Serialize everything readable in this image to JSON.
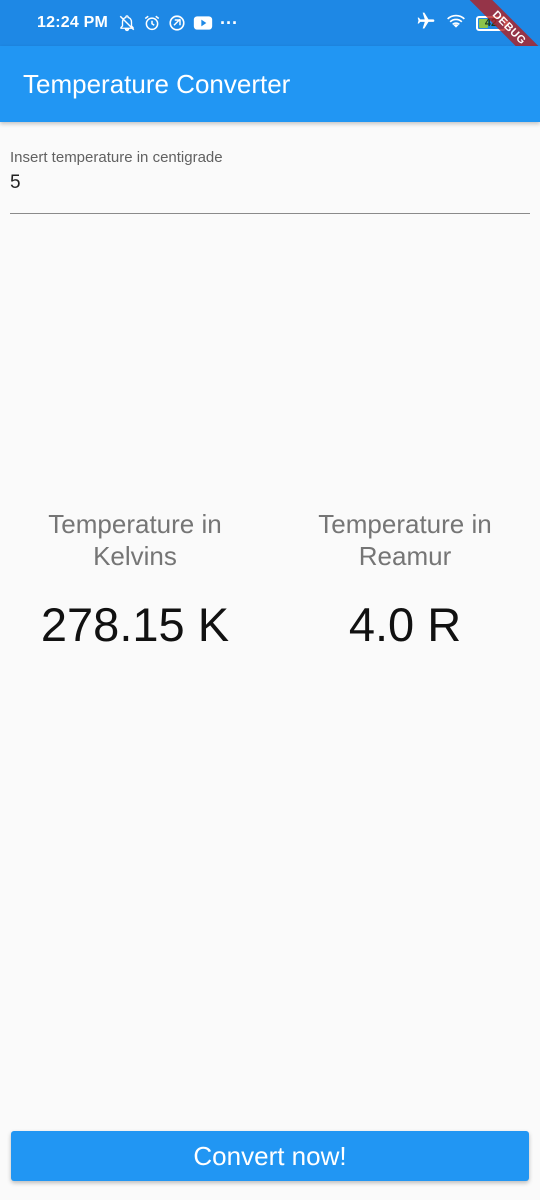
{
  "status_bar": {
    "time": "12:24 PM",
    "left_icons": [
      "notifications-off-icon",
      "alarm-icon",
      "vpn-icon",
      "youtube-icon",
      "more-dots-icon"
    ],
    "more": "···",
    "right_icons": [
      "airplane-icon",
      "wifi-icon",
      "battery-icon"
    ],
    "battery_level": "42",
    "battery_fraction": 0.42,
    "battery_color": "#8bc34a"
  },
  "debug_banner": "DEBUG",
  "app_bar": {
    "title": "Temperature Converter",
    "color": "#2196f3"
  },
  "input": {
    "label": "Insert temperature in centigrade",
    "value": "5"
  },
  "results": {
    "kelvin": {
      "label": "Temperature in Kelvins",
      "value": "278.15 K"
    },
    "reamur": {
      "label": "Temperature in Reamur",
      "value": "4.0 R"
    }
  },
  "convert_button": {
    "label": "Convert now!"
  }
}
